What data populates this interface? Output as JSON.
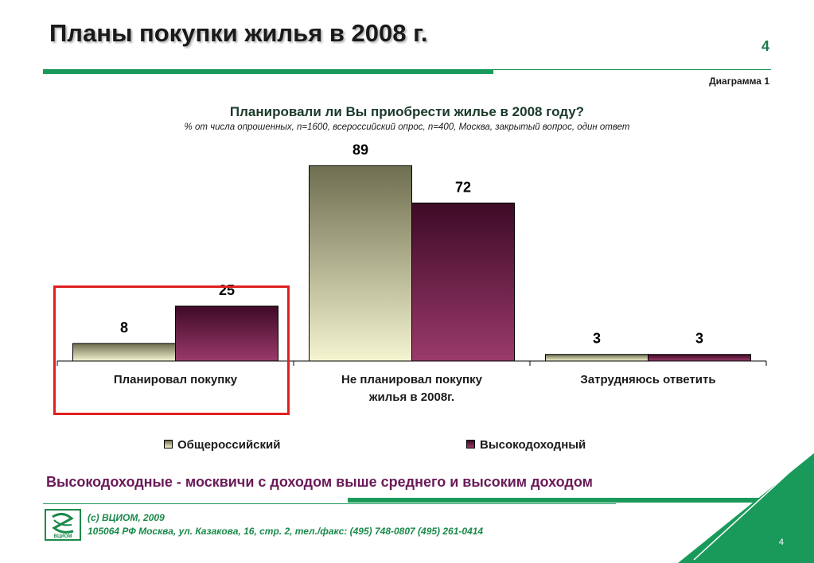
{
  "header": {
    "title": "Планы покупки жилья в 2008 г.",
    "page_number": "4",
    "diagram_label": "Диаграмма 1"
  },
  "chart_data": {
    "type": "bar",
    "title": "Планировали ли Вы приобрести жилье в 2008 году?",
    "subtitle": "% от числа опрошенных, n=1600, всероссийский опрос, n=400,  Москва, закрытый вопрос, один ответ",
    "categories": [
      [
        "Планировал покупку"
      ],
      [
        "Не планировал покупку",
        "жилья в 2008г."
      ],
      [
        "Затрудняюсь ответить"
      ]
    ],
    "series": [
      {
        "name": "Общероссийский",
        "values": [
          8,
          89,
          3
        ],
        "color": "#8c8c6e"
      },
      {
        "name": "Высокодоходный",
        "values": [
          25,
          72,
          3
        ],
        "color": "#6a1e46"
      }
    ],
    "ylim": [
      0,
      100
    ],
    "grid": false,
    "legend_position": "bottom",
    "highlighted_category": "Планировал покупку"
  },
  "footnote": "Высокодоходные  - москвичи с доходом выше среднего и высоким доходом",
  "footer": {
    "copyright": "(c) ВЦИОМ, 2009",
    "address": "105064 РФ Москва, ул. Казакова, 16, стр. 2, тел./факс: (495) 748-0807 (495) 261-0414",
    "logo_text": "ВЦИОМ",
    "page_number": "4"
  },
  "colors": {
    "accent_green": "#1a9a5a",
    "highlight_red": "#e02020",
    "footnote_purple": "#6a1a58"
  }
}
